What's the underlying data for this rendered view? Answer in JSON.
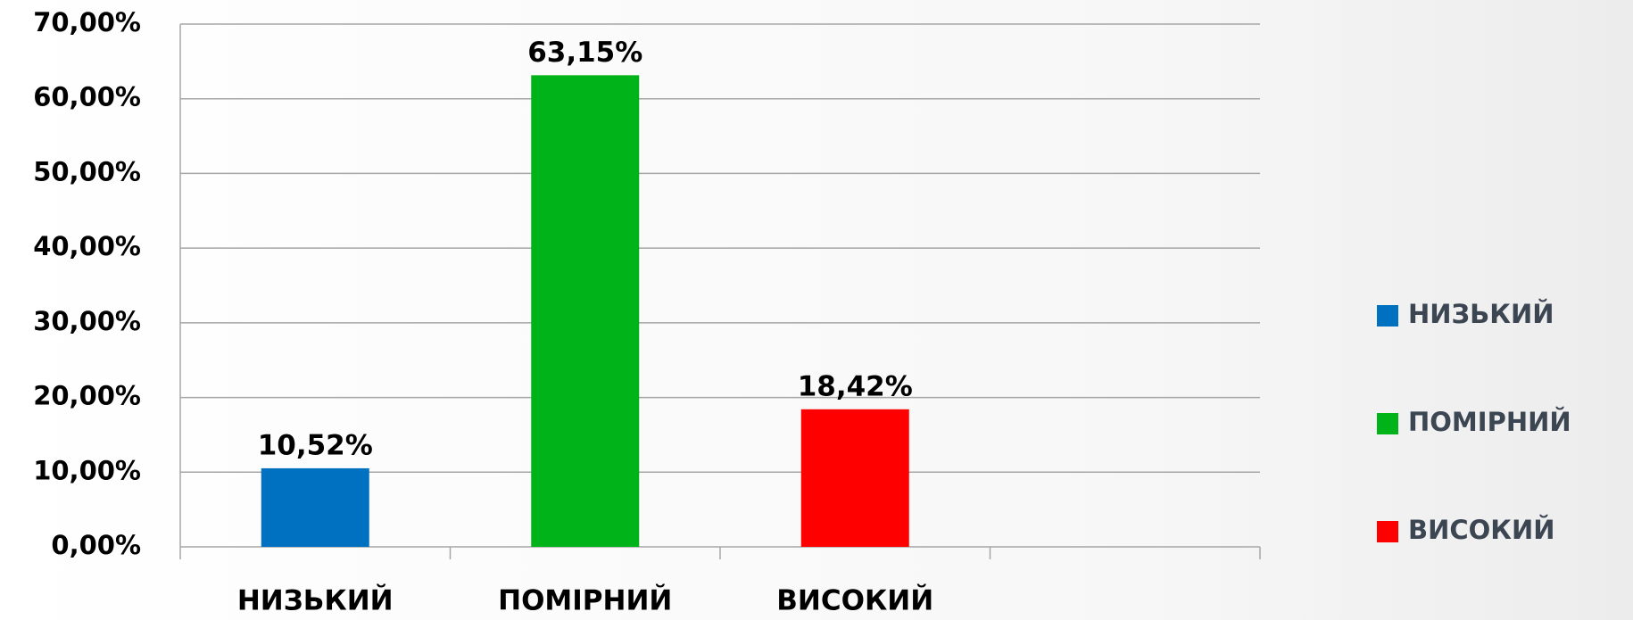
{
  "chart_data": {
    "type": "bar",
    "categories": [
      "НИЗЬКИЙ",
      "ПОМІРНИЙ",
      "ВИСОКИЙ",
      null
    ],
    "values": [
      10.52,
      63.15,
      18.42,
      null
    ],
    "value_labels": [
      "10,52%",
      "63,15%",
      "18,42%",
      null
    ],
    "colors": [
      "#0070c0",
      "#00b318",
      "#ff0000",
      null
    ],
    "ylim": [
      0,
      70
    ],
    "yticks": [
      {
        "value": 0,
        "label": "0,00%"
      },
      {
        "value": 10,
        "label": "10,00%"
      },
      {
        "value": 20,
        "label": "20,00%"
      },
      {
        "value": 30,
        "label": "30,00%"
      },
      {
        "value": 40,
        "label": "40,00%"
      },
      {
        "value": 50,
        "label": "50,00%"
      },
      {
        "value": 60,
        "label": "60,00%"
      },
      {
        "value": 70,
        "label": "70,00%"
      }
    ],
    "grid": true,
    "legend": "right"
  }
}
